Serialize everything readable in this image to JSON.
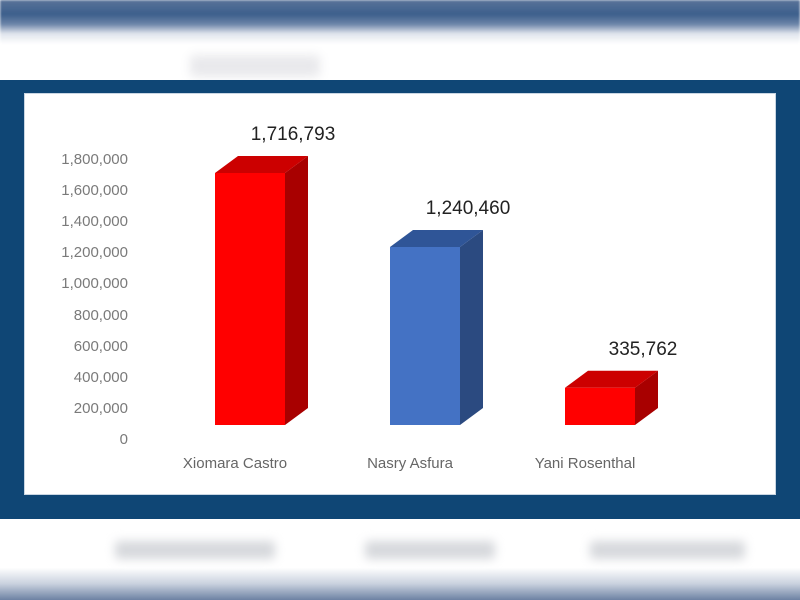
{
  "chart_data": {
    "type": "bar",
    "style": "3d-column",
    "title": "",
    "xlabel": "",
    "ylabel": "",
    "categories": [
      "Xiomara Castro",
      "Nasry Asfura",
      "Yani Rosenthal"
    ],
    "values": [
      1716793,
      1240460,
      335762
    ],
    "value_labels": [
      "1,716,793",
      "1,240,460",
      "335,762"
    ],
    "bar_colors": [
      "#ff0000",
      "#4472c4",
      "#ff0000"
    ],
    "ylim": [
      0,
      1800000
    ],
    "yticks": [
      0,
      200000,
      400000,
      600000,
      800000,
      1000000,
      1200000,
      1400000,
      1600000,
      1800000
    ],
    "ytick_labels": [
      "0",
      "200,000",
      "400,000",
      "600,000",
      "800,000",
      "1,000,000",
      "1,200,000",
      "1,400,000",
      "1,600,000",
      "1,800,000"
    ],
    "grid": false,
    "legend": null
  },
  "colors": {
    "frame": "#0f4675",
    "panel": "#ffffff",
    "red_front": "#ff0000",
    "red_top": "#cc0000",
    "red_side": "#a80000",
    "blue_front": "#4472c4",
    "blue_top": "#2f5597",
    "blue_side": "#2b4a80",
    "axis_text": "#7a7a7a",
    "value_text": "#222222"
  }
}
